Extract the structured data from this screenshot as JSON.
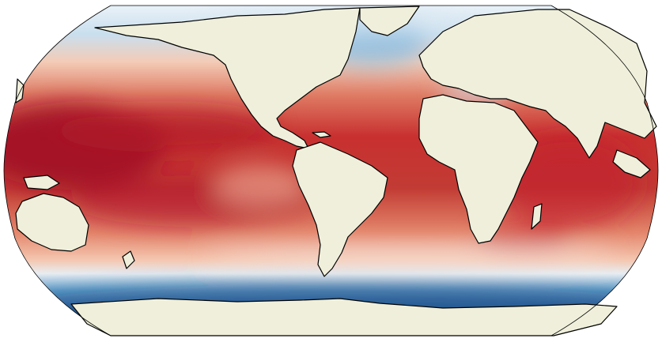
{
  "map": {
    "projection": "Robinson",
    "land_color": "#efefdb",
    "coastline_color": "#000000",
    "ocean_missing_color": "#ffffff",
    "colormap": "RdBu_r",
    "colormap_stops": [
      "#053061",
      "#2166ac",
      "#4393c3",
      "#92c5de",
      "#d1e5f0",
      "#f7f7f7",
      "#fddbc7",
      "#f4a582",
      "#d6604d",
      "#b2182b",
      "#67001f"
    ],
    "scale_note": "",
    "bands": [
      {
        "region": "arctic",
        "level": 0.4
      },
      {
        "region": "north-atlantic-subpolar",
        "level": 0.45
      },
      {
        "region": "north-pacific",
        "level": 0.7
      },
      {
        "region": "tropical-west-pacific",
        "level": 0.92
      },
      {
        "region": "tropical-east-pacific",
        "level": 0.7
      },
      {
        "region": "tropical-atlantic",
        "level": 0.7
      },
      {
        "region": "indian-ocean",
        "level": 0.82
      },
      {
        "region": "mediterranean",
        "level": 0.42
      },
      {
        "region": "southern-subtropics",
        "level": 0.65
      },
      {
        "region": "southern-ocean-front",
        "level": 0.42
      },
      {
        "region": "southern-ocean",
        "level": 0.15
      }
    ]
  }
}
